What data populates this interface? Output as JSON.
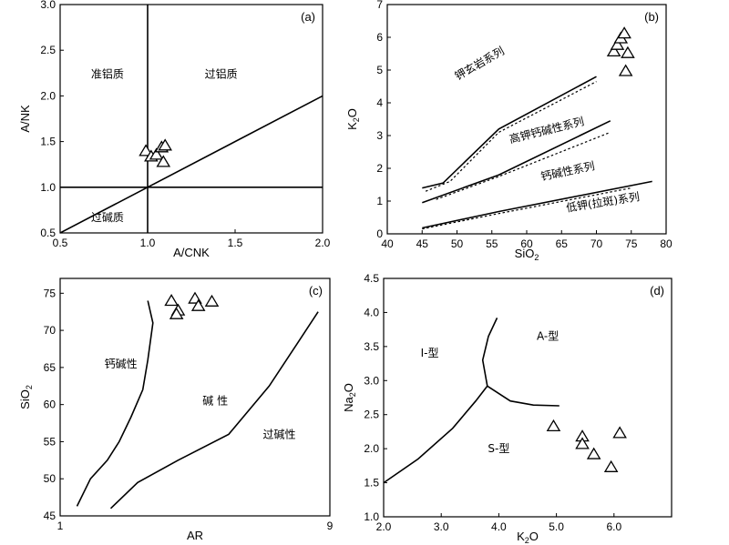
{
  "chart_data": [
    {
      "panel": "(a)",
      "type": "scatter",
      "xlabel": "A/CNK",
      "ylabel": "A/NK",
      "xlim": [
        0.5,
        2.0
      ],
      "ylim": [
        0.5,
        3.0
      ],
      "xticks": [
        "0.5",
        "1.0",
        "1.5",
        "2.0"
      ],
      "yticks": [
        "0.5",
        "1.0",
        "1.5",
        "2.0",
        "2.5",
        "3.0"
      ],
      "field_labels": [
        {
          "text": "准铝质",
          "x": 0.77,
          "y": 2.2
        },
        {
          "text": "过铝质",
          "x": 1.42,
          "y": 2.2
        },
        {
          "text": "过碱质",
          "x": 0.77,
          "y": 0.63
        }
      ],
      "lines": [
        {
          "points": [
            [
              1.0,
              0.5
            ],
            [
              1.0,
              3.0
            ]
          ]
        },
        {
          "points": [
            [
              0.5,
              1.0
            ],
            [
              2.0,
              1.0
            ]
          ]
        },
        {
          "points": [
            [
              0.5,
              0.5
            ],
            [
              2.0,
              2.0
            ]
          ]
        }
      ],
      "points": [
        {
          "x": 0.99,
          "y": 1.39
        },
        {
          "x": 1.02,
          "y": 1.33
        },
        {
          "x": 1.05,
          "y": 1.35
        },
        {
          "x": 1.08,
          "y": 1.43
        },
        {
          "x": 1.1,
          "y": 1.45
        },
        {
          "x": 1.09,
          "y": 1.27
        }
      ]
    },
    {
      "panel": "(b)",
      "type": "scatter",
      "xlabel": "SiO2",
      "ylabel": "K2O",
      "xlim": [
        40,
        80
      ],
      "ylim": [
        0,
        7
      ],
      "xticks": [
        "40",
        "45",
        "50",
        "55",
        "60",
        "65",
        "70",
        "75",
        "80"
      ],
      "yticks": [
        "0",
        "1",
        "2",
        "3",
        "4",
        "5",
        "6",
        "7"
      ],
      "field_labels": [
        {
          "text": "钾玄岩系列",
          "x": 53.5,
          "y": 5.1,
          "angle": -30
        },
        {
          "text": "高钾钙碱性系列",
          "x": 63,
          "y": 3.05,
          "angle": -14
        },
        {
          "text": "钙碱性系列",
          "x": 66,
          "y": 1.8,
          "angle": -12
        },
        {
          "text": "低钾(拉斑)系列",
          "x": 71,
          "y": 0.85,
          "angle": -9
        }
      ],
      "lines": [
        {
          "style": "solid",
          "points": [
            [
              45,
              1.4
            ],
            [
              48,
              1.55
            ],
            [
              56,
              3.2
            ],
            [
              70,
              4.8
            ]
          ]
        },
        {
          "style": "dotted",
          "points": [
            [
              45.5,
              1.3
            ],
            [
              49,
              1.6
            ],
            [
              56,
              3.1
            ],
            [
              70,
              4.65
            ]
          ]
        },
        {
          "style": "solid",
          "points": [
            [
              45,
              0.95
            ],
            [
              56,
              1.8
            ],
            [
              72,
              3.45
            ]
          ]
        },
        {
          "style": "dotted",
          "points": [
            [
              47,
              1.05
            ],
            [
              56,
              1.75
            ],
            [
              72,
              3.1
            ]
          ]
        },
        {
          "style": "solid",
          "points": [
            [
              45,
              0.18
            ],
            [
              56,
              0.68
            ],
            [
              78,
              1.6
            ]
          ]
        },
        {
          "style": "dotted",
          "points": [
            [
              45,
              0.15
            ],
            [
              56,
              0.62
            ],
            [
              75,
              1.4
            ]
          ]
        }
      ],
      "points": [
        {
          "x": 72.5,
          "y": 5.55
        },
        {
          "x": 73.0,
          "y": 5.75
        },
        {
          "x": 73.5,
          "y": 5.95
        },
        {
          "x": 74.0,
          "y": 6.1
        },
        {
          "x": 74.5,
          "y": 5.5
        },
        {
          "x": 74.2,
          "y": 4.95
        }
      ]
    },
    {
      "panel": "(c)",
      "type": "scatter",
      "xlabel": "AR",
      "ylabel": "SiO2",
      "xlim": [
        1,
        9
      ],
      "ylim": [
        45,
        77
      ],
      "xticks": [
        "1",
        "9"
      ],
      "yticks": [
        "45",
        "50",
        "55",
        "60",
        "65",
        "70",
        "75"
      ],
      "field_labels": [
        {
          "text": "钙碱性",
          "x": 2.8,
          "y": 65
        },
        {
          "text": "碱 性",
          "x": 5.6,
          "y": 60
        },
        {
          "text": "过碱性",
          "x": 7.5,
          "y": 55.5
        }
      ],
      "lines": [
        {
          "points": [
            [
              1.5,
              46.3
            ],
            [
              1.9,
              50
            ],
            [
              2.4,
              52.5
            ],
            [
              2.75,
              55
            ],
            [
              3.1,
              58.3
            ],
            [
              3.45,
              62
            ],
            [
              3.6,
              66
            ],
            [
              3.75,
              71
            ],
            [
              3.6,
              74
            ]
          ]
        },
        {
          "points": [
            [
              2.5,
              46
            ],
            [
              3.3,
              49.5
            ],
            [
              4.5,
              52.5
            ],
            [
              6.0,
              56
            ],
            [
              7.2,
              62.5
            ],
            [
              8.0,
              68
            ],
            [
              8.65,
              72.5
            ]
          ]
        }
      ],
      "points": [
        {
          "x": 4.3,
          "y": 73.9
        },
        {
          "x": 4.5,
          "y": 72.6
        },
        {
          "x": 4.45,
          "y": 72.1
        },
        {
          "x": 5.0,
          "y": 74.2
        },
        {
          "x": 5.1,
          "y": 73.2
        },
        {
          "x": 5.5,
          "y": 73.8
        }
      ]
    },
    {
      "panel": "(d)",
      "type": "scatter",
      "xlabel": "K2O",
      "ylabel": "Na2O",
      "xlim": [
        2.0,
        7.0
      ],
      "ylim": [
        1.0,
        4.5
      ],
      "xticks": [
        "2.0",
        "3.0",
        "4.0",
        "5.0",
        "6.0"
      ],
      "yticks": [
        "1.0",
        "1.5",
        "2.0",
        "2.5",
        "3.0",
        "3.5",
        "4.0",
        "4.5"
      ],
      "field_labels": [
        {
          "text": "I-型",
          "x": 2.8,
          "y": 3.35
        },
        {
          "text": "A-型",
          "x": 4.85,
          "y": 3.6
        },
        {
          "text": "S-型",
          "x": 4.0,
          "y": 1.95
        }
      ],
      "lines": [
        {
          "points": [
            [
              2.0,
              1.5
            ],
            [
              2.6,
              1.85
            ],
            [
              3.2,
              2.3
            ],
            [
              3.6,
              2.7
            ],
            [
              3.8,
              2.92
            ]
          ]
        },
        {
          "points": [
            [
              3.8,
              2.92
            ],
            [
              3.72,
              3.3
            ],
            [
              3.82,
              3.65
            ],
            [
              3.97,
              3.92
            ]
          ]
        },
        {
          "points": [
            [
              3.8,
              2.92
            ],
            [
              4.2,
              2.7
            ],
            [
              4.6,
              2.64
            ],
            [
              5.05,
              2.63
            ]
          ]
        }
      ],
      "points": [
        {
          "x": 4.95,
          "y": 2.32
        },
        {
          "x": 5.45,
          "y": 2.17
        },
        {
          "x": 5.45,
          "y": 2.06
        },
        {
          "x": 5.65,
          "y": 1.91
        },
        {
          "x": 5.95,
          "y": 1.72
        },
        {
          "x": 6.1,
          "y": 2.22
        }
      ]
    }
  ]
}
